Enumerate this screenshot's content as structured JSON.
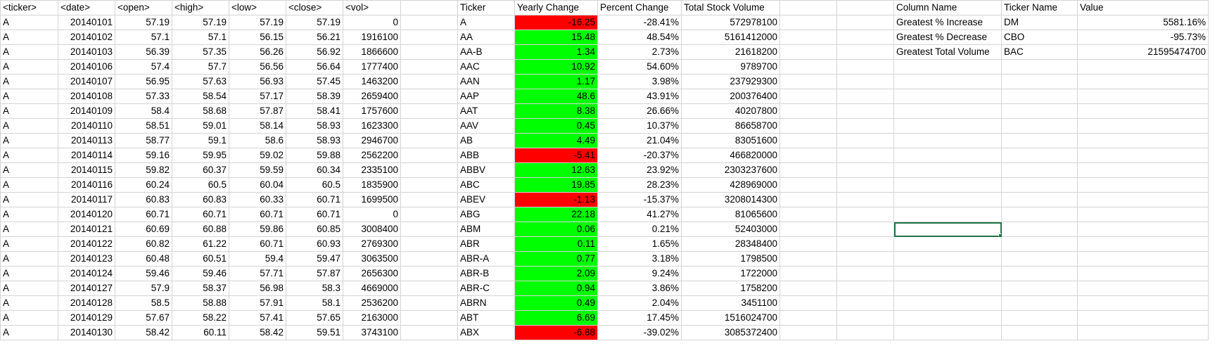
{
  "sheet": {
    "raw_headers": [
      "<ticker>",
      "<date>",
      "<open>",
      "<high>",
      "<low>",
      "<close>",
      "<vol>"
    ],
    "raw_rows": [
      [
        "A",
        "20140101",
        "57.19",
        "57.19",
        "57.19",
        "57.19",
        "0"
      ],
      [
        "A",
        "20140102",
        "57.1",
        "57.1",
        "56.15",
        "56.21",
        "1916100"
      ],
      [
        "A",
        "20140103",
        "56.39",
        "57.35",
        "56.26",
        "56.92",
        "1866600"
      ],
      [
        "A",
        "20140106",
        "57.4",
        "57.7",
        "56.56",
        "56.64",
        "1777400"
      ],
      [
        "A",
        "20140107",
        "56.95",
        "57.63",
        "56.93",
        "57.45",
        "1463200"
      ],
      [
        "A",
        "20140108",
        "57.33",
        "58.54",
        "57.17",
        "58.39",
        "2659400"
      ],
      [
        "A",
        "20140109",
        "58.4",
        "58.68",
        "57.87",
        "58.41",
        "1757600"
      ],
      [
        "A",
        "20140110",
        "58.51",
        "59.01",
        "58.14",
        "58.93",
        "1623300"
      ],
      [
        "A",
        "20140113",
        "58.77",
        "59.1",
        "58.6",
        "58.93",
        "2946700"
      ],
      [
        "A",
        "20140114",
        "59.16",
        "59.95",
        "59.02",
        "59.88",
        "2562200"
      ],
      [
        "A",
        "20140115",
        "59.82",
        "60.37",
        "59.59",
        "60.34",
        "2335100"
      ],
      [
        "A",
        "20140116",
        "60.24",
        "60.5",
        "60.04",
        "60.5",
        "1835900"
      ],
      [
        "A",
        "20140117",
        "60.83",
        "60.83",
        "60.33",
        "60.71",
        "1699500"
      ],
      [
        "A",
        "20140120",
        "60.71",
        "60.71",
        "60.71",
        "60.71",
        "0"
      ],
      [
        "A",
        "20140121",
        "60.69",
        "60.88",
        "59.86",
        "60.85",
        "3008400"
      ],
      [
        "A",
        "20140122",
        "60.82",
        "61.22",
        "60.71",
        "60.93",
        "2769300"
      ],
      [
        "A",
        "20140123",
        "60.48",
        "60.51",
        "59.4",
        "59.47",
        "3063500"
      ],
      [
        "A",
        "20140124",
        "59.46",
        "59.46",
        "57.71",
        "57.87",
        "2656300"
      ],
      [
        "A",
        "20140127",
        "57.9",
        "58.37",
        "56.98",
        "58.3",
        "4669000"
      ],
      [
        "A",
        "20140128",
        "58.5",
        "58.88",
        "57.91",
        "58.1",
        "2536200"
      ],
      [
        "A",
        "20140129",
        "57.67",
        "58.22",
        "57.41",
        "57.65",
        "2163000"
      ],
      [
        "A",
        "20140130",
        "58.42",
        "60.11",
        "58.42",
        "59.51",
        "3743100"
      ]
    ],
    "summary_headers": [
      "Ticker",
      "Yearly Change",
      "Percent Change",
      "Total Stock Volume"
    ],
    "summary_rows": [
      {
        "ticker": "A",
        "change": "-16.25",
        "pct": "-28.41%",
        "volume": "572978100",
        "sign": "neg"
      },
      {
        "ticker": "AA",
        "change": "15.48",
        "pct": "48.54%",
        "volume": "5161412000",
        "sign": "pos"
      },
      {
        "ticker": "AA-B",
        "change": "1.34",
        "pct": "2.73%",
        "volume": "21618200",
        "sign": "pos"
      },
      {
        "ticker": "AAC",
        "change": "10.92",
        "pct": "54.60%",
        "volume": "9789700",
        "sign": "pos"
      },
      {
        "ticker": "AAN",
        "change": "1.17",
        "pct": "3.98%",
        "volume": "237929300",
        "sign": "pos"
      },
      {
        "ticker": "AAP",
        "change": "48.6",
        "pct": "43.91%",
        "volume": "200376400",
        "sign": "pos"
      },
      {
        "ticker": "AAT",
        "change": "8.38",
        "pct": "26.66%",
        "volume": "40207800",
        "sign": "pos"
      },
      {
        "ticker": "AAV",
        "change": "0.45",
        "pct": "10.37%",
        "volume": "86658700",
        "sign": "pos"
      },
      {
        "ticker": "AB",
        "change": "4.49",
        "pct": "21.04%",
        "volume": "83051600",
        "sign": "pos"
      },
      {
        "ticker": "ABB",
        "change": "-5.41",
        "pct": "-20.37%",
        "volume": "466820000",
        "sign": "neg"
      },
      {
        "ticker": "ABBV",
        "change": "12.63",
        "pct": "23.92%",
        "volume": "2303237600",
        "sign": "pos"
      },
      {
        "ticker": "ABC",
        "change": "19.85",
        "pct": "28.23%",
        "volume": "428969000",
        "sign": "pos"
      },
      {
        "ticker": "ABEV",
        "change": "-1.13",
        "pct": "-15.37%",
        "volume": "3208014300",
        "sign": "neg"
      },
      {
        "ticker": "ABG",
        "change": "22.18",
        "pct": "41.27%",
        "volume": "81065600",
        "sign": "pos"
      },
      {
        "ticker": "ABM",
        "change": "0.06",
        "pct": "0.21%",
        "volume": "52403000",
        "sign": "pos"
      },
      {
        "ticker": "ABR",
        "change": "0.11",
        "pct": "1.65%",
        "volume": "28348400",
        "sign": "pos"
      },
      {
        "ticker": "ABR-A",
        "change": "0.77",
        "pct": "3.18%",
        "volume": "1798500",
        "sign": "pos"
      },
      {
        "ticker": "ABR-B",
        "change": "2.09",
        "pct": "9.24%",
        "volume": "1722000",
        "sign": "pos"
      },
      {
        "ticker": "ABR-C",
        "change": "0.94",
        "pct": "3.86%",
        "volume": "1758200",
        "sign": "pos"
      },
      {
        "ticker": "ABRN",
        "change": "0.49",
        "pct": "2.04%",
        "volume": "3451100",
        "sign": "pos"
      },
      {
        "ticker": "ABT",
        "change": "6.69",
        "pct": "17.45%",
        "volume": "1516024700",
        "sign": "pos"
      },
      {
        "ticker": "ABX",
        "change": "-6.88",
        "pct": "-39.02%",
        "volume": "3085372400",
        "sign": "neg"
      }
    ],
    "greatest_headers": [
      "Column Name",
      "Ticker Name",
      "Value"
    ],
    "greatest_rows": [
      {
        "label": "Greatest % Increase",
        "ticker": "DM",
        "value": "5581.16%"
      },
      {
        "label": "Greatest % Decrease",
        "ticker": "CBO",
        "value": "-95.73%"
      },
      {
        "label": "Greatest Total Volume",
        "ticker": "BAC",
        "value": "21595474700"
      }
    ],
    "colors": {
      "positive": "#00ff00",
      "negative": "#ff0000",
      "gridline": "#d4d4d4",
      "selection": "#217346"
    }
  }
}
